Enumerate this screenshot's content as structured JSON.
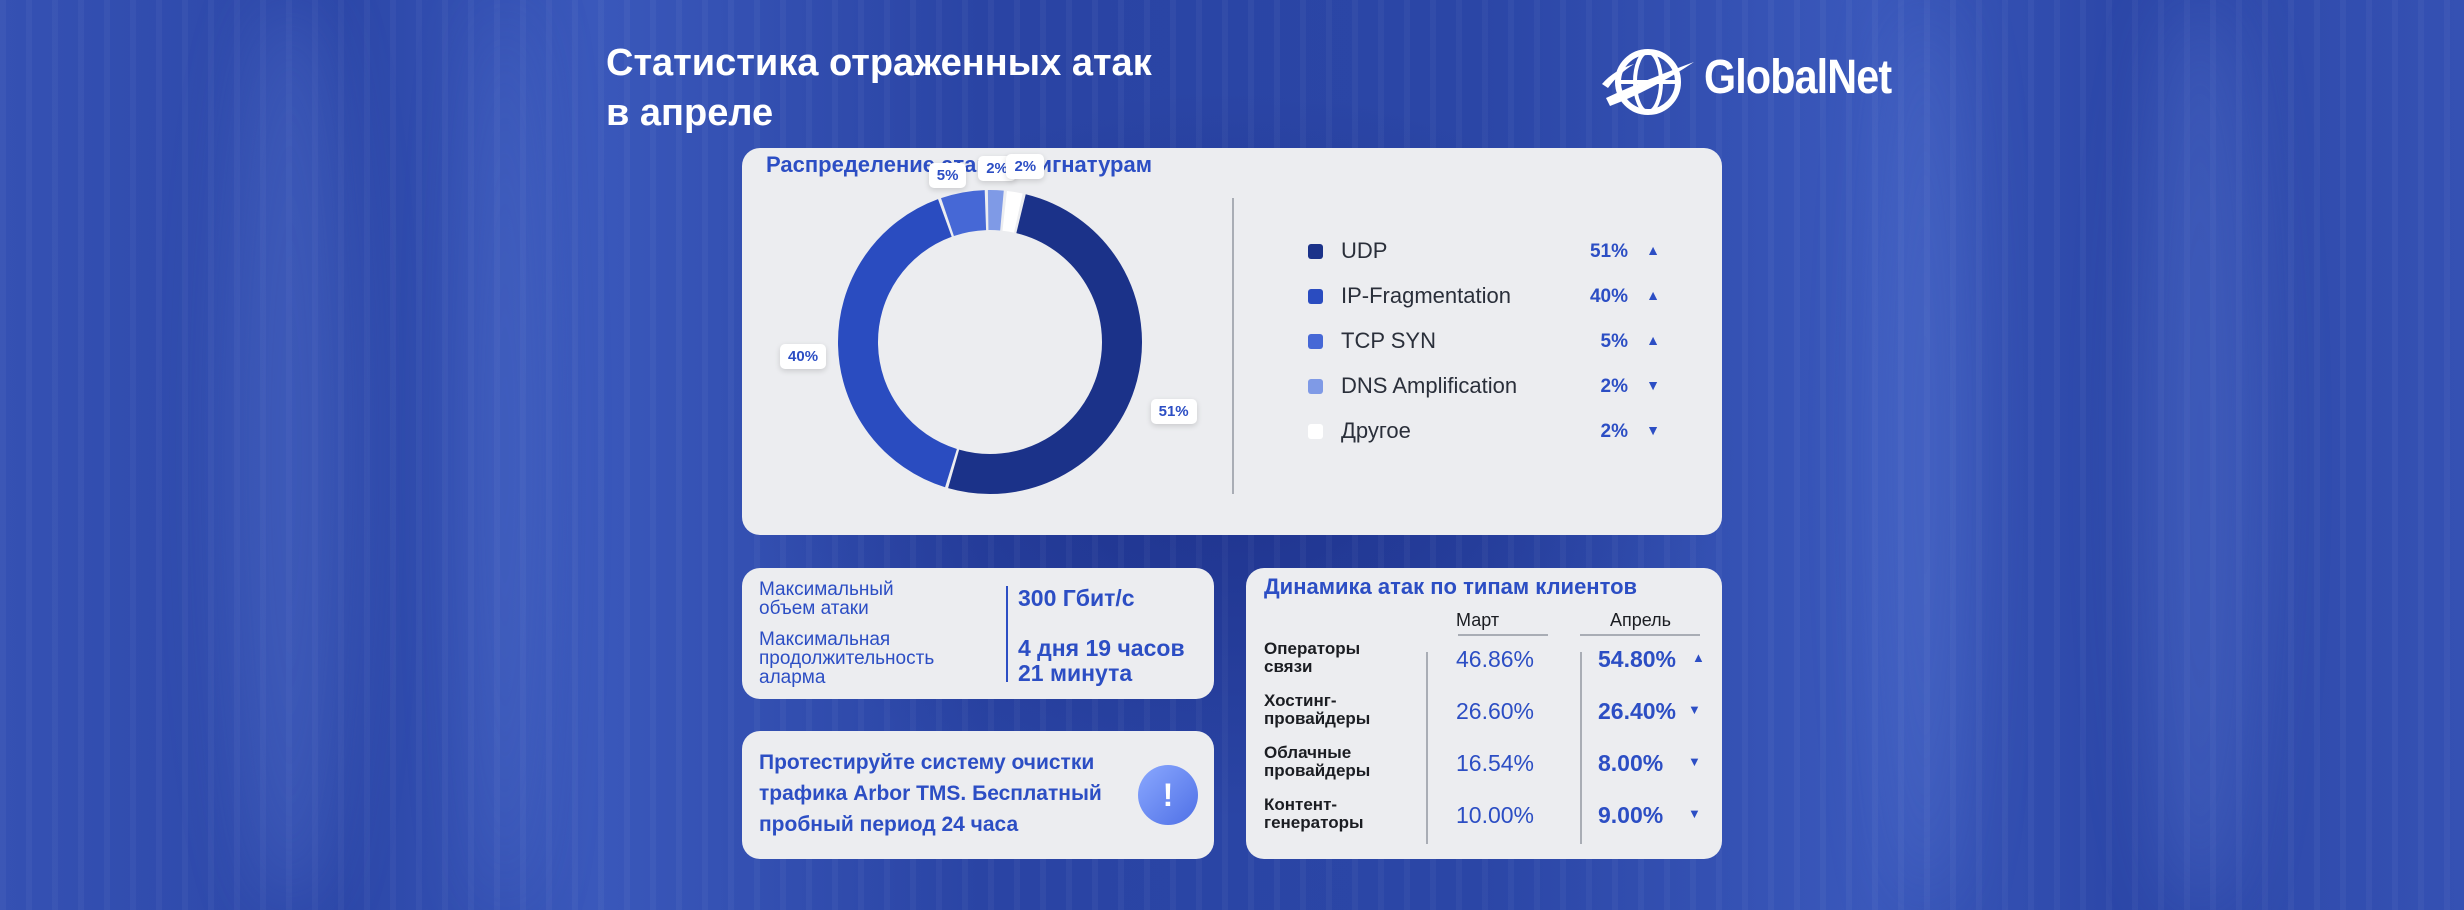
{
  "header": {
    "title_line1": "Статистика отраженных атак",
    "title_line2": "в апреле",
    "brand": "GlobalNet",
    "brand_icon": "globe-swoosh-icon"
  },
  "chart_data": [
    {
      "type": "pie",
      "variant": "donut",
      "title": "Распределение атак по сигнатурам",
      "legend_position": "right",
      "unit": "%",
      "slices": [
        {
          "name": "UDP",
          "value": 51,
          "label": "51%",
          "trend": "up",
          "color": "#1b3289"
        },
        {
          "name": "IP-Fragmentation",
          "value": 40,
          "label": "40%",
          "trend": "up",
          "color": "#2a4cc0"
        },
        {
          "name": "TCP SYN",
          "value": 5,
          "label": "5%",
          "trend": "up",
          "color": "#4668d6"
        },
        {
          "name": "DNS Amplification",
          "value": 2,
          "label": "2%",
          "trend": "down",
          "color": "#7f9ae6"
        },
        {
          "name": "Другое",
          "value": 2,
          "label": "2%",
          "trend": "down",
          "color": "#ffffff"
        }
      ]
    },
    {
      "type": "table",
      "title": "Динамика атак по типам клиентов",
      "columns": [
        "Март",
        "Апрель"
      ],
      "rows": [
        {
          "category_line1": "Операторы",
          "category_line2": "связи",
          "march": "46.86%",
          "april": "54.80%",
          "trend": "up"
        },
        {
          "category_line1": "Хостинг-",
          "category_line2": "провайдеры",
          "march": "26.60%",
          "april": "26.40%",
          "trend": "down"
        },
        {
          "category_line1": "Облачные",
          "category_line2": "провайдеры",
          "march": "16.54%",
          "april": "8.00%",
          "trend": "down"
        },
        {
          "category_line1": "Контент-",
          "category_line2": "генераторы",
          "march": "10.00%",
          "april": "9.00%",
          "trend": "down"
        }
      ]
    }
  ],
  "stats": {
    "max_volume_label_line1": "Максимальный",
    "max_volume_label_line2": "объем атаки",
    "max_volume_value": "300 Гбит/с",
    "max_duration_label_line1": "Максимальная",
    "max_duration_label_line2": "продолжительность",
    "max_duration_label_line3": "аларма",
    "max_duration_value_line1": "4 дня 19 часов",
    "max_duration_value_line2": "21 минута"
  },
  "promo": {
    "text": "Протестируйте систему очистки трафика Arbor TMS. Бесплатный пробный период 24 часа",
    "badge": "!",
    "badge_icon": "exclamation-icon"
  },
  "colors": {
    "accent": "#2c4ec4",
    "card": "#ecedf0"
  }
}
